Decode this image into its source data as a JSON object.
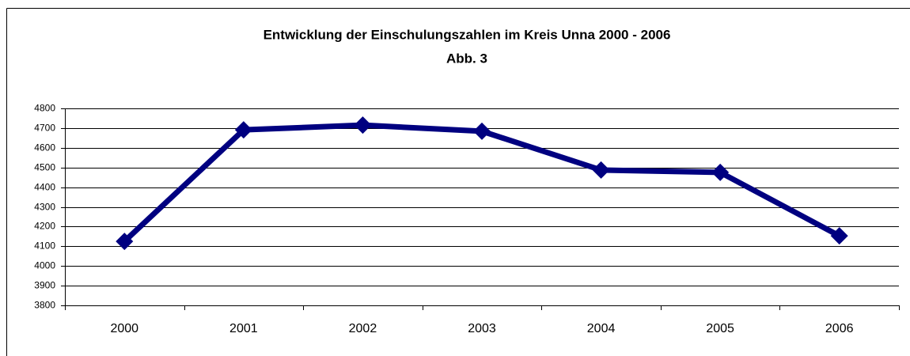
{
  "chart_data": {
    "type": "line",
    "title": "Entwicklung der Einschulungszahlen im Kreis Unna 2000 - 2006",
    "subtitle": "Abb. 3",
    "categories": [
      "2000",
      "2001",
      "2002",
      "2003",
      "2004",
      "2005",
      "2006"
    ],
    "series": [
      {
        "name": "Einschulungszahlen",
        "color": "#000080",
        "values": [
          4125,
          4691,
          4715,
          4684,
          4487,
          4475,
          4153
        ]
      }
    ],
    "ylim": [
      3800,
      4800
    ],
    "yticks": [
      3800,
      3900,
      4000,
      4100,
      4200,
      4300,
      4400,
      4500,
      4600,
      4700,
      4800
    ],
    "grid": true
  }
}
